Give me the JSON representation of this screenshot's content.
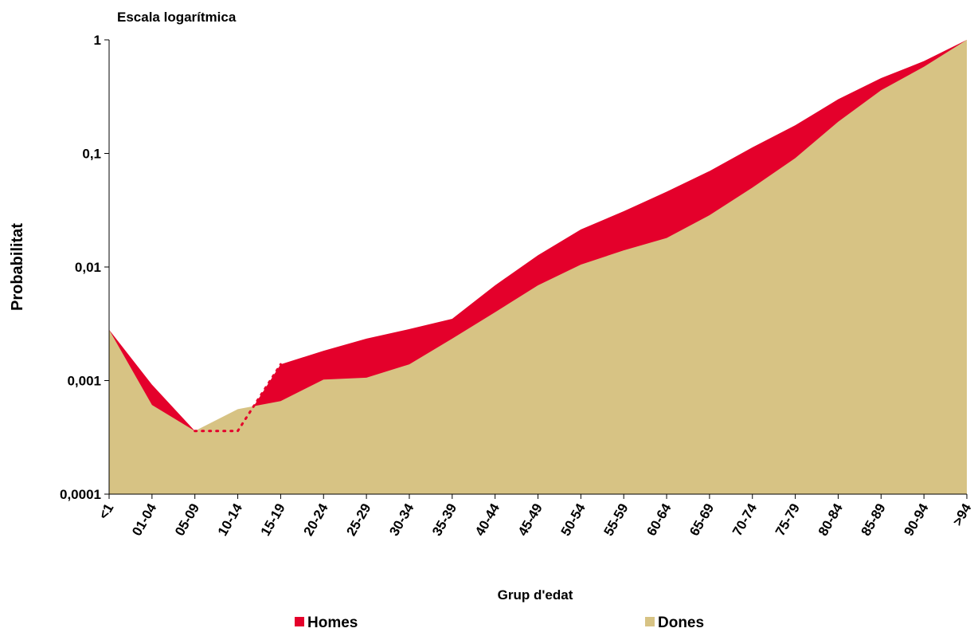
{
  "chart_data": {
    "type": "area",
    "subtitle": "Escala logarítmica",
    "x_label": "Grup d'edat",
    "y_label": "Probabilitat",
    "log_scale": true,
    "legend": "bottom",
    "categories": [
      "<1",
      "01-04",
      "05-09",
      "10-14",
      "15-19",
      "20-24",
      "25-29",
      "30-34",
      "35-39",
      "40-44",
      "45-49",
      "50-54",
      "55-59",
      "60-64",
      "65-69",
      "70-74",
      "75-79",
      "80-84",
      "85-89",
      "90-94",
      ">94"
    ],
    "series": [
      {
        "name": "Homes",
        "color": "#e4002b",
        "values": [
          0.0028,
          0.00092,
          0.00036,
          0.00036,
          0.00139,
          0.00183,
          0.00234,
          0.00284,
          0.0035,
          0.0069,
          0.0127,
          0.0214,
          0.031,
          0.046,
          0.07,
          0.113,
          0.177,
          0.3,
          0.46,
          0.65,
          1
        ]
      },
      {
        "name": "Dones",
        "color": "#d7c384",
        "values": [
          0.0028,
          0.00061,
          0.00036,
          0.00056,
          0.00066,
          0.00102,
          0.00106,
          0.00139,
          0.00234,
          0.004,
          0.0069,
          0.0105,
          0.014,
          0.018,
          0.0286,
          0.05,
          0.091,
          0.19,
          0.36,
          0.58,
          1
        ]
      }
    ],
    "ylim": [
      0.0001,
      1
    ],
    "yticks": [
      1,
      {
        "value": 0.1,
        "label": "0,1"
      },
      {
        "value": 0.01,
        "label": "0,01"
      },
      {
        "value": 0.001,
        "label": "0,001"
      },
      {
        "value": 0.0001,
        "label": "0,0001"
      }
    ]
  }
}
